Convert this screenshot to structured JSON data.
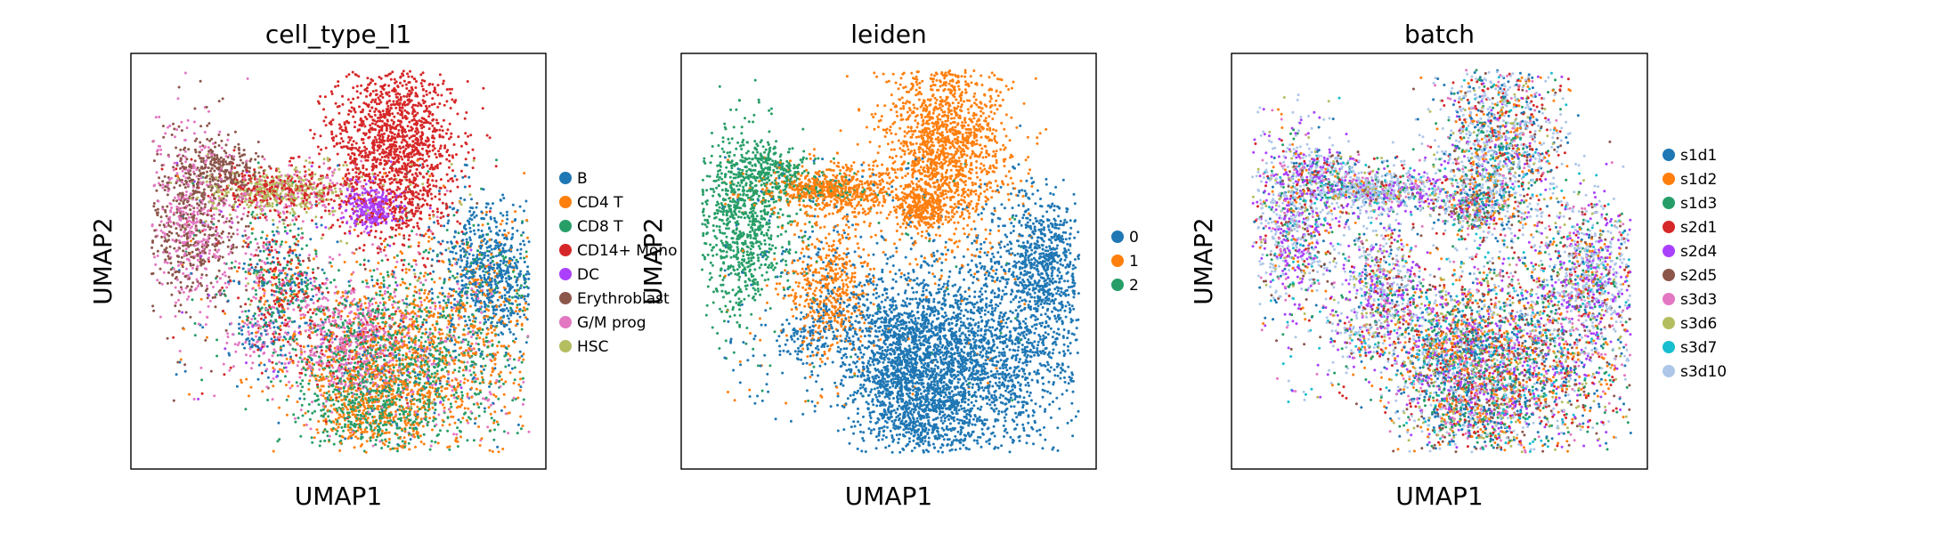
{
  "chart_data": [
    {
      "type": "scatter",
      "title": "cell_type_l1",
      "xlabel": "UMAP1",
      "ylabel": "UMAP2",
      "legend_position": "right",
      "legend": [
        {
          "label": "B",
          "color": "#1f77b4"
        },
        {
          "label": "CD4 T",
          "color": "#ff7f0e"
        },
        {
          "label": "CD8 T",
          "color": "#279e68"
        },
        {
          "label": "CD14+ Mono",
          "color": "#d62728"
        },
        {
          "label": "DC",
          "color": "#aa40fc"
        },
        {
          "label": "Erythroblast",
          "color": "#8c564b"
        },
        {
          "label": "G/M prog",
          "color": "#e377c2"
        },
        {
          "label": "HSC",
          "color": "#b5bd61"
        }
      ]
    },
    {
      "type": "scatter",
      "title": "leiden",
      "xlabel": "UMAP1",
      "ylabel": "UMAP2",
      "legend_position": "right",
      "legend": [
        {
          "label": "0",
          "color": "#1f77b4"
        },
        {
          "label": "1",
          "color": "#ff7f0e"
        },
        {
          "label": "2",
          "color": "#279e68"
        }
      ]
    },
    {
      "type": "scatter",
      "title": "batch",
      "xlabel": "UMAP1",
      "ylabel": "UMAP2",
      "legend_position": "right",
      "legend": [
        {
          "label": "s1d1",
          "color": "#1f77b4"
        },
        {
          "label": "s1d2",
          "color": "#ff7f0e"
        },
        {
          "label": "s1d3",
          "color": "#279e68"
        },
        {
          "label": "s2d1",
          "color": "#d62728"
        },
        {
          "label": "s2d4",
          "color": "#aa40fc"
        },
        {
          "label": "s2d5",
          "color": "#8c564b"
        },
        {
          "label": "s3d3",
          "color": "#e377c2"
        },
        {
          "label": "s3d6",
          "color": "#b5bd61"
        },
        {
          "label": "s3d7",
          "color": "#17becf"
        },
        {
          "label": "s3d10",
          "color": "#aec7e8"
        }
      ]
    }
  ]
}
